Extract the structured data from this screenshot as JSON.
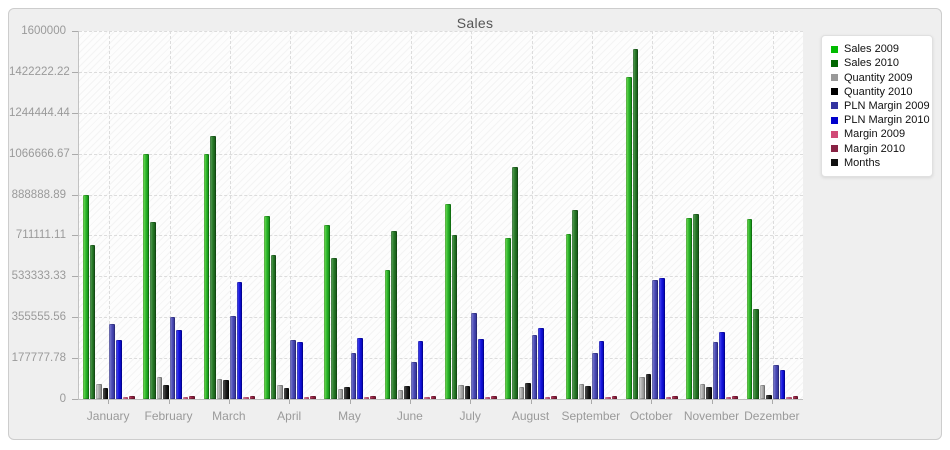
{
  "window": {
    "background": "#efefef",
    "plot_background": "#fdfdfd"
  },
  "chart_data": {
    "type": "bar",
    "title": "Sales",
    "xlabel": "",
    "ylabel": "",
    "ylim": [
      0,
      1600000
    ],
    "y_ticks": [
      "0",
      "177777.78",
      "355555.56",
      "533333.33",
      "711111.11",
      "888888.89",
      "1066666.67",
      "1244444.44",
      "1422222.22",
      "1600000"
    ],
    "grid": "dashed horizontal at ticks, dashed vertical at month centers, hatched plot background",
    "legend_position": "right",
    "categories": [
      "January",
      "February",
      "March",
      "April",
      "May",
      "June",
      "July",
      "August",
      "September",
      "October",
      "November",
      "Dezember"
    ],
    "series": [
      {
        "name": "Sales 2009",
        "color": "#00bb00",
        "gradient": [
          "#7ce35c",
          "#2bb52b",
          "#0f7f0f"
        ],
        "values": [
          885000,
          1066667,
          1066667,
          795000,
          757000,
          560000,
          849000,
          700000,
          718000,
          1400000,
          785000,
          783000
        ]
      },
      {
        "name": "Sales 2010",
        "color": "#006600",
        "gradient": [
          "#63a763",
          "#267726",
          "#145214"
        ],
        "values": [
          670000,
          770000,
          1145000,
          627000,
          612000,
          730000,
          715000,
          1010000,
          820000,
          1520000,
          805000,
          390000
        ]
      },
      {
        "name": "Quantity 2009",
        "color": "#999999",
        "gradient": [
          "#dedede",
          "#ababab",
          "#828282"
        ],
        "values": [
          64000,
          95000,
          86000,
          61000,
          42000,
          39000,
          60000,
          52000,
          64000,
          95000,
          67000,
          62000
        ]
      },
      {
        "name": "Quantity 2010",
        "color": "#000000",
        "gradient": [
          "#5a5a5a",
          "#1e1e1e",
          "#000000"
        ],
        "values": [
          49000,
          61000,
          83000,
          49000,
          52000,
          55000,
          55000,
          71000,
          55000,
          110000,
          54000,
          16000
        ]
      },
      {
        "name": "PLN Margin 2009",
        "color": "#3333a0",
        "gradient": [
          "#8a8ad6",
          "#4a4ab4",
          "#2e2e8e"
        ],
        "values": [
          325000,
          355000,
          360000,
          258000,
          200000,
          160000,
          372000,
          278000,
          198000,
          516000,
          250000,
          150000
        ]
      },
      {
        "name": "PLN Margin 2010",
        "color": "#0000cc",
        "gradient": [
          "#5656f2",
          "#1414dd",
          "#0000aa"
        ],
        "values": [
          255000,
          300000,
          510000,
          250000,
          265000,
          252000,
          262000,
          310000,
          252000,
          528000,
          293000,
          128000
        ]
      },
      {
        "name": "Margin 2009",
        "color": "#d14a77",
        "gradient": [
          "#f49cb4",
          "#e46e92",
          "#c04a6e"
        ],
        "values": [
          8000,
          8000,
          8000,
          8000,
          8000,
          8000,
          8000,
          8000,
          8000,
          8000,
          8000,
          8000
        ]
      },
      {
        "name": "Margin 2010",
        "color": "#882244",
        "gradient": [
          "#c05070",
          "#93203f",
          "#6e1830"
        ],
        "values": [
          12000,
          12000,
          12000,
          12000,
          12000,
          12000,
          12000,
          12000,
          12000,
          12000,
          12000,
          12000
        ]
      },
      {
        "name": "Months",
        "color": "#111111",
        "gradient": [
          "#555555",
          "#111111",
          "#000000"
        ],
        "values": [
          0,
          0,
          0,
          0,
          0,
          0,
          0,
          0,
          0,
          0,
          0,
          0
        ]
      }
    ]
  }
}
